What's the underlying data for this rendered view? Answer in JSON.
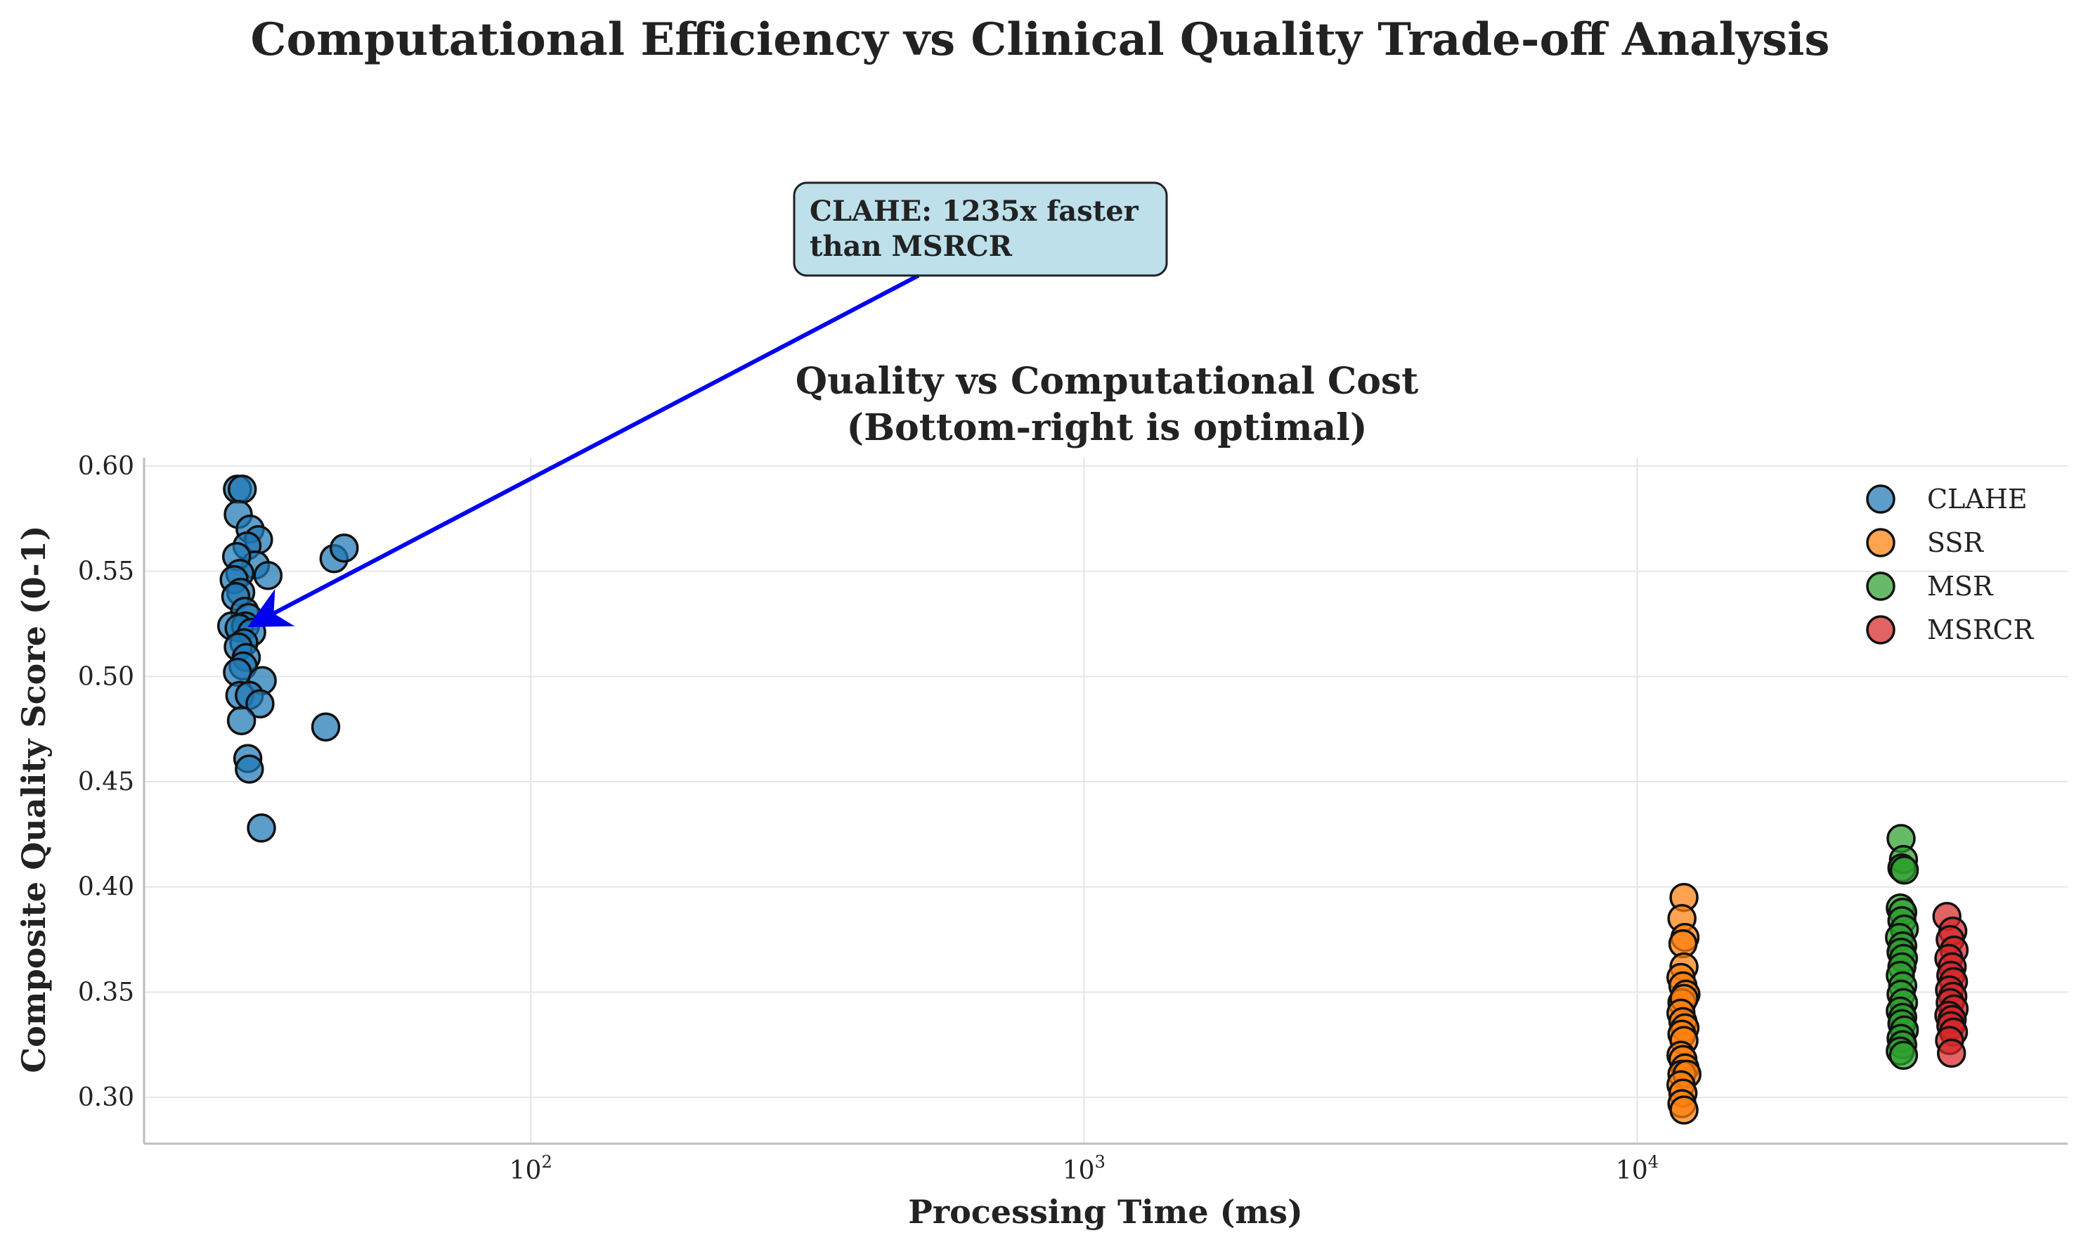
{
  "chart_data": {
    "type": "scatter",
    "suptitle": "Computational Efficiency vs Clinical Quality Trade-off Analysis",
    "title_line1": "Quality vs Computational Cost",
    "title_line2": "(Bottom-right is optimal)",
    "xlabel": "Processing Time (ms)",
    "ylabel": "Composite Quality Score (0-1)",
    "xscale": "log",
    "xlim": [
      20,
      60000
    ],
    "ylim": [
      0.278,
      0.604
    ],
    "x_ticks": [
      {
        "value": 100,
        "base": "10",
        "exp": "2"
      },
      {
        "value": 1000,
        "base": "10",
        "exp": "3"
      },
      {
        "value": 10000,
        "base": "10",
        "exp": "4"
      }
    ],
    "y_ticks": [
      0.3,
      0.35,
      0.4,
      0.45,
      0.5,
      0.55,
      0.6
    ],
    "y_tick_labels": [
      "0.30",
      "0.35",
      "0.40",
      "0.45",
      "0.50",
      "0.55",
      "0.60"
    ],
    "grid": true,
    "legend_position": "top-right",
    "annotation": {
      "line1": "CLAHE: 1235x faster",
      "line2": "than MSRCR",
      "text_at": [
        460,
        0.694
      ],
      "arrow_to": [
        31,
        0.524
      ],
      "box_color": "#add8e6",
      "arrow_color": "#0000ee"
    },
    "series": [
      {
        "name": "CLAHE",
        "color": "#1f77b4",
        "points": [
          [
            29.5,
            0.589
          ],
          [
            30.1,
            0.589
          ],
          [
            29.6,
            0.577
          ],
          [
            31.1,
            0.57
          ],
          [
            32.2,
            0.565
          ],
          [
            30.7,
            0.562
          ],
          [
            31.8,
            0.553
          ],
          [
            29.4,
            0.557
          ],
          [
            33.5,
            0.548
          ],
          [
            29.8,
            0.549
          ],
          [
            29.1,
            0.546
          ],
          [
            29.9,
            0.54
          ],
          [
            29.3,
            0.538
          ],
          [
            30.4,
            0.531
          ],
          [
            30.9,
            0.528
          ],
          [
            28.8,
            0.524
          ],
          [
            30.5,
            0.524
          ],
          [
            29.7,
            0.523
          ],
          [
            31.3,
            0.521
          ],
          [
            30.3,
            0.516
          ],
          [
            29.6,
            0.514
          ],
          [
            30.6,
            0.509
          ],
          [
            30.2,
            0.505
          ],
          [
            29.5,
            0.502
          ],
          [
            32.7,
            0.498
          ],
          [
            29.8,
            0.491
          ],
          [
            31.0,
            0.491
          ],
          [
            32.4,
            0.487
          ],
          [
            30.0,
            0.479
          ],
          [
            30.8,
            0.461
          ],
          [
            31.0,
            0.456
          ],
          [
            32.6,
            0.428
          ],
          [
            44.1,
            0.556
          ],
          [
            46.0,
            0.561
          ],
          [
            42.6,
            0.476
          ]
        ]
      },
      {
        "name": "SSR",
        "color": "#ff7f0e",
        "points": [
          [
            12150,
            0.395
          ],
          [
            12050,
            0.385
          ],
          [
            12200,
            0.376
          ],
          [
            12100,
            0.373
          ],
          [
            12150,
            0.362
          ],
          [
            12000,
            0.357
          ],
          [
            12100,
            0.353
          ],
          [
            12250,
            0.349
          ],
          [
            12050,
            0.345
          ],
          [
            12150,
            0.347
          ],
          [
            12000,
            0.34
          ],
          [
            12100,
            0.336
          ],
          [
            12200,
            0.333
          ],
          [
            12050,
            0.33
          ],
          [
            12150,
            0.327
          ],
          [
            12000,
            0.32
          ],
          [
            12100,
            0.318
          ],
          [
            12200,
            0.314
          ],
          [
            12050,
            0.311
          ],
          [
            12300,
            0.311
          ],
          [
            12000,
            0.306
          ],
          [
            12100,
            0.302
          ],
          [
            12050,
            0.297
          ],
          [
            12150,
            0.294
          ]
        ]
      },
      {
        "name": "MSR",
        "color": "#2ca02c",
        "points": [
          [
            30000,
            0.423
          ],
          [
            30300,
            0.413
          ],
          [
            30100,
            0.409
          ],
          [
            30400,
            0.408
          ],
          [
            29900,
            0.39
          ],
          [
            30200,
            0.388
          ],
          [
            30100,
            0.384
          ],
          [
            30400,
            0.38
          ],
          [
            29800,
            0.376
          ],
          [
            30200,
            0.372
          ],
          [
            30000,
            0.369
          ],
          [
            30300,
            0.366
          ],
          [
            30100,
            0.362
          ],
          [
            29900,
            0.358
          ],
          [
            30200,
            0.353
          ],
          [
            30000,
            0.349
          ],
          [
            30300,
            0.345
          ],
          [
            29900,
            0.341
          ],
          [
            30200,
            0.338
          ],
          [
            30100,
            0.335
          ],
          [
            30400,
            0.332
          ],
          [
            30000,
            0.328
          ],
          [
            30200,
            0.325
          ],
          [
            29900,
            0.322
          ],
          [
            30300,
            0.32
          ]
        ]
      },
      {
        "name": "MSRCR",
        "color": "#d62728",
        "points": [
          [
            36300,
            0.386
          ],
          [
            37200,
            0.379
          ],
          [
            36800,
            0.375
          ],
          [
            37400,
            0.37
          ],
          [
            36600,
            0.366
          ],
          [
            37100,
            0.362
          ],
          [
            36900,
            0.358
          ],
          [
            37300,
            0.355
          ],
          [
            36700,
            0.351
          ],
          [
            37200,
            0.348
          ],
          [
            36800,
            0.345
          ],
          [
            37400,
            0.342
          ],
          [
            36600,
            0.339
          ],
          [
            37100,
            0.337
          ],
          [
            36900,
            0.334
          ],
          [
            37300,
            0.331
          ],
          [
            36700,
            0.327
          ],
          [
            37000,
            0.321
          ]
        ]
      }
    ]
  }
}
